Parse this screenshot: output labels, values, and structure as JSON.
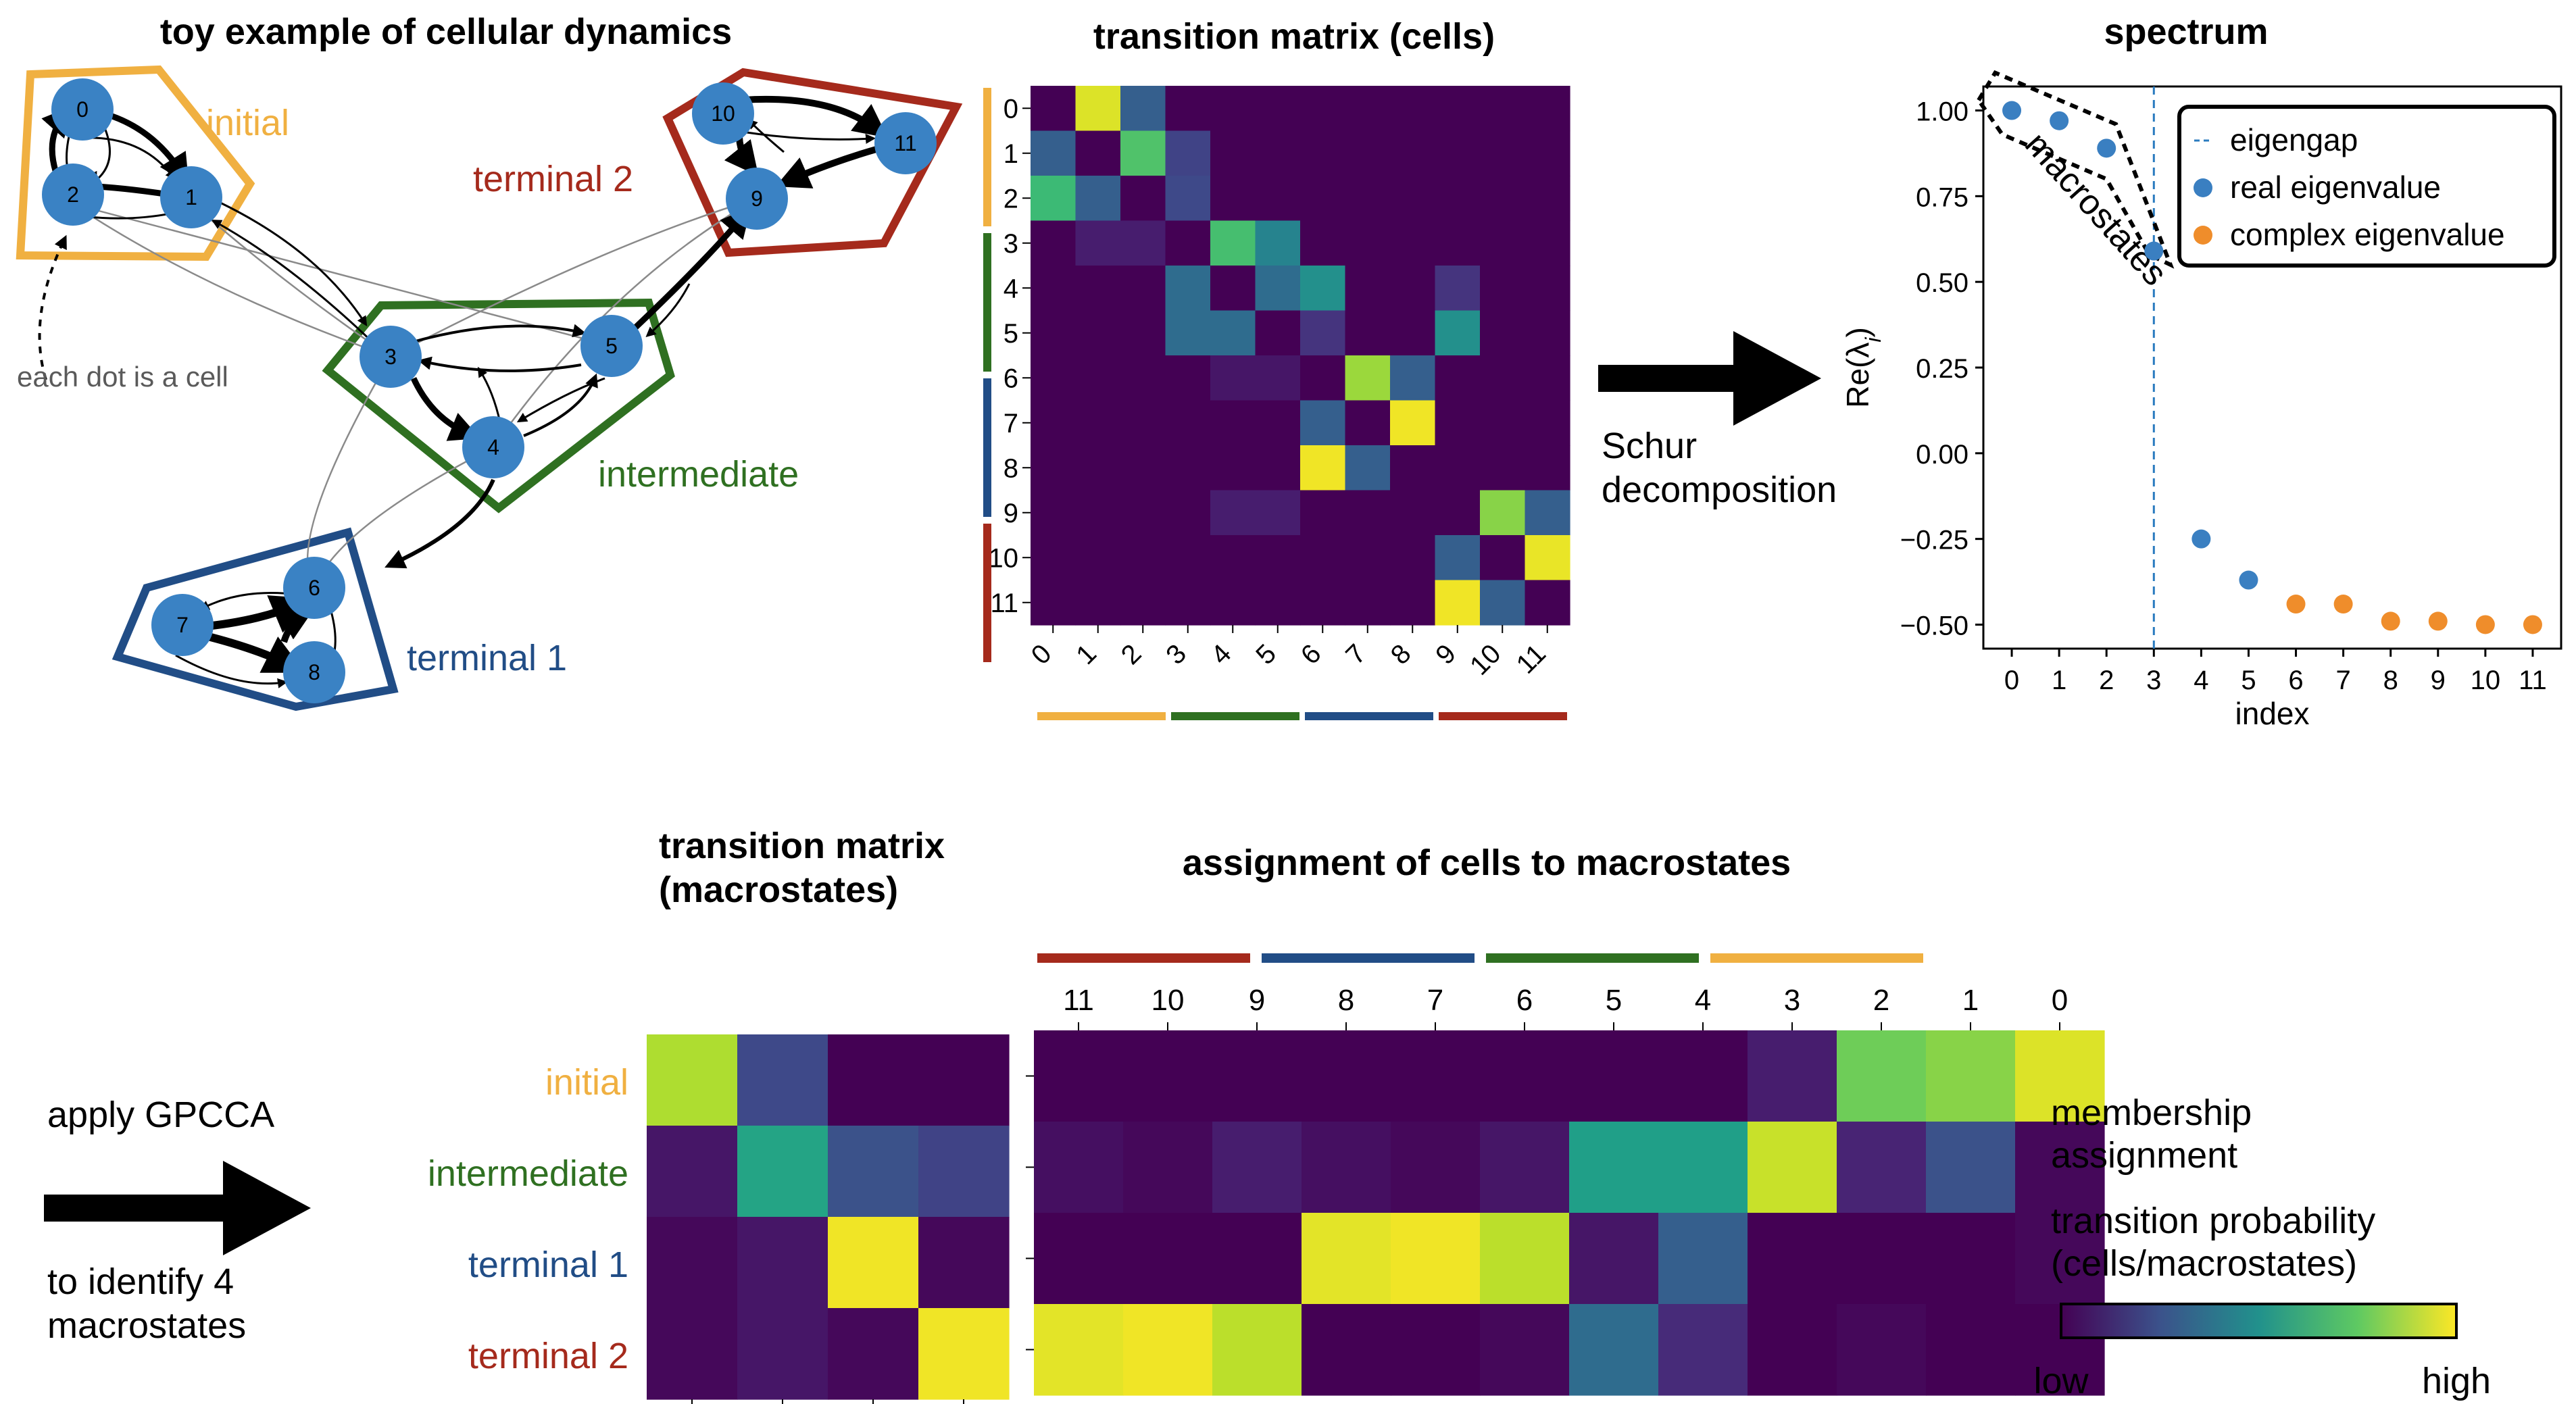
{
  "panels": {
    "toy": {
      "title": "toy example of cellular dynamics",
      "labels": {
        "initial": "initial",
        "terminal2": "terminal 2",
        "intermediate": "intermediate",
        "terminal1": "terminal 1"
      },
      "annotation": "each dot is a cell",
      "nodes": [
        "0",
        "1",
        "2",
        "3",
        "4",
        "5",
        "6",
        "7",
        "8",
        "9",
        "10",
        "11"
      ]
    },
    "cell_matrix": {
      "title": "transition matrix (cells)",
      "ticks": [
        "0",
        "1",
        "2",
        "3",
        "4",
        "5",
        "6",
        "7",
        "8",
        "9",
        "10",
        "11"
      ]
    },
    "schur": {
      "line1": "Schur",
      "line2": "decomposition"
    },
    "spectrum": {
      "title": "spectrum",
      "xlabel": "index",
      "ylabel": "Re(λ",
      "ylabel_sub": "i",
      "ylabel_close": ")",
      "yticks": [
        "1.00",
        "0.75",
        "0.50",
        "0.25",
        "0.00",
        "−0.25",
        "−0.50"
      ],
      "xticks": [
        "0",
        "1",
        "2",
        "3",
        "4",
        "5",
        "6",
        "7",
        "8",
        "9",
        "10",
        "11"
      ],
      "legend": [
        "eigengap",
        "real eigenvalue",
        "complex eigenvalue"
      ],
      "annotation": "macrostates"
    },
    "gpcca": {
      "line1": "apply GPCCA",
      "line2": "to identify 4",
      "line3": "macrostates"
    },
    "macro_matrix": {
      "title_line1": "transition matrix",
      "title_line2": "(macrostates)",
      "rows": [
        "initial",
        "intermediate",
        "terminal 1",
        "terminal 2"
      ]
    },
    "assignment": {
      "title": "assignment of cells to macrostates",
      "cols": [
        "11",
        "10",
        "9",
        "8",
        "7",
        "6",
        "5",
        "4",
        "3",
        "2",
        "1",
        "0"
      ]
    },
    "colorbar": {
      "line1": "membership",
      "line2": "assignment",
      "line3": "transition probability",
      "line4": "(cells/macrostates)",
      "low": "low",
      "high": "high"
    }
  },
  "colors": {
    "initial": "#f0b041",
    "intermediate": "#2f7021",
    "terminal1": "#214d86",
    "terminal2": "#a52a1c",
    "node": "#3a82c4",
    "real": "#3a7fc1",
    "complex": "#ef8d2b",
    "eigengap": "#2a7bbf"
  },
  "chart_data": [
    {
      "type": "heatmap",
      "title": "transition matrix (cells)",
      "rows": [
        "0",
        "1",
        "2",
        "3",
        "4",
        "5",
        "6",
        "7",
        "8",
        "9",
        "10",
        "11"
      ],
      "cols": [
        "0",
        "1",
        "2",
        "3",
        "4",
        "5",
        "6",
        "7",
        "8",
        "9",
        "10",
        "11"
      ],
      "values": [
        [
          0.0,
          0.95,
          0.3,
          0,
          0,
          0,
          0,
          0,
          0,
          0,
          0,
          0
        ],
        [
          0.3,
          0.0,
          0.72,
          0.2,
          0,
          0,
          0,
          0,
          0,
          0,
          0,
          0
        ],
        [
          0.68,
          0.3,
          0.0,
          0.22,
          0,
          0,
          0,
          0,
          0,
          0,
          0,
          0
        ],
        [
          0,
          0.08,
          0.08,
          0,
          0.7,
          0.45,
          0,
          0,
          0,
          0,
          0,
          0
        ],
        [
          0,
          0,
          0,
          0.35,
          0,
          0.35,
          0.5,
          0,
          0,
          0.15,
          0,
          0
        ],
        [
          0,
          0,
          0,
          0.35,
          0.35,
          0,
          0.15,
          0,
          0,
          0.5,
          0,
          0
        ],
        [
          0,
          0,
          0,
          0,
          0.06,
          0.06,
          0,
          0.85,
          0.3,
          0,
          0,
          0
        ],
        [
          0,
          0,
          0,
          0,
          0,
          0,
          0.3,
          0,
          0.98,
          0,
          0,
          0
        ],
        [
          0,
          0,
          0,
          0,
          0,
          0,
          0.98,
          0.3,
          0,
          0,
          0,
          0
        ],
        [
          0,
          0,
          0,
          0,
          0.08,
          0.08,
          0,
          0,
          0,
          0,
          0.82,
          0.3
        ],
        [
          0,
          0,
          0,
          0,
          0,
          0,
          0,
          0,
          0,
          0.3,
          0,
          0.97
        ],
        [
          0,
          0,
          0,
          0,
          0,
          0,
          0,
          0,
          0,
          0.98,
          0.3,
          0
        ]
      ]
    },
    {
      "type": "scatter",
      "title": "spectrum",
      "xlabel": "index",
      "ylabel": "Re(λi)",
      "ylim": [
        -0.57,
        1.07
      ],
      "xlim": [
        -0.6,
        11.6
      ],
      "eigengap_x": 3,
      "series": [
        {
          "name": "real eigenvalue",
          "x": [
            0,
            1,
            2,
            3,
            4,
            5
          ],
          "y": [
            1.0,
            0.97,
            0.89,
            0.59,
            -0.25,
            -0.37
          ]
        },
        {
          "name": "complex eigenvalue",
          "x": [
            6,
            7,
            8,
            9,
            10,
            11
          ],
          "y": [
            -0.44,
            -0.44,
            -0.49,
            -0.49,
            -0.5,
            -0.5
          ]
        }
      ],
      "legend_position": "top-right"
    },
    {
      "type": "heatmap",
      "title": "transition matrix (macrostates)",
      "rows": [
        "initial",
        "intermediate",
        "terminal 1",
        "terminal 2"
      ],
      "values": [
        [
          0.88,
          0.22,
          0.0,
          0.0
        ],
        [
          0.06,
          0.58,
          0.25,
          0.2
        ],
        [
          0.02,
          0.06,
          0.98,
          0.02
        ],
        [
          0.02,
          0.06,
          0.02,
          0.98
        ]
      ]
    },
    {
      "type": "heatmap",
      "title": "assignment of cells to macrostates",
      "rows": [
        "initial",
        "intermediate",
        "terminal 1",
        "terminal 2"
      ],
      "cols": [
        "11",
        "10",
        "9",
        "8",
        "7",
        "6",
        "5",
        "4",
        "3",
        "2",
        "1",
        "0"
      ],
      "values": [
        [
          0.0,
          0.0,
          0.0,
          0.0,
          0.0,
          0.0,
          0.0,
          0.0,
          0.08,
          0.78,
          0.82,
          0.95
        ],
        [
          0.04,
          0.02,
          0.08,
          0.04,
          0.02,
          0.06,
          0.56,
          0.56,
          0.92,
          0.1,
          0.25,
          0.02
        ],
        [
          0.0,
          0.0,
          0.0,
          0.96,
          0.98,
          0.9,
          0.06,
          0.3,
          0.0,
          0.0,
          0.0,
          0.02
        ],
        [
          0.96,
          0.98,
          0.9,
          0.0,
          0.0,
          0.02,
          0.35,
          0.12,
          0.0,
          0.02,
          0.0,
          0.0
        ]
      ]
    }
  ]
}
